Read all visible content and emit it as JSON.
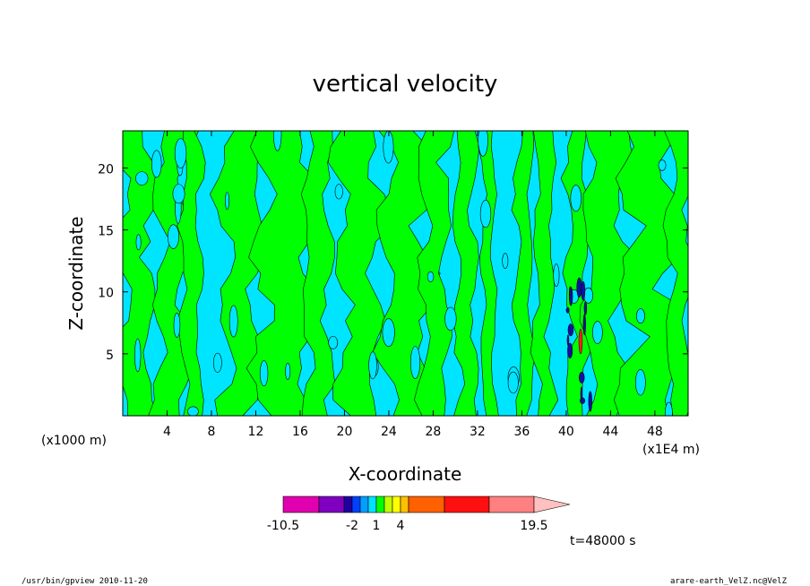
{
  "chart_data": {
    "type": "heatmap",
    "title": "vertical velocity",
    "xlabel": "X-coordinate",
    "ylabel": "Z-coordinate",
    "x_unit_left": "(x1000 m)",
    "x_unit_right": "(x1E4 m)",
    "xlim": [
      0,
      51
    ],
    "ylim": [
      0,
      23
    ],
    "xticks": [
      4,
      8,
      12,
      16,
      20,
      24,
      28,
      32,
      36,
      40,
      44,
      48
    ],
    "yticks": [
      5,
      10,
      15,
      20
    ],
    "levels": [
      -10.5,
      -8,
      -4,
      -2,
      -1,
      0,
      1,
      2,
      3,
      4,
      8,
      12,
      16,
      19.5
    ],
    "colorbar_labels": [
      "-10.5",
      "-2",
      "1",
      "4",
      "19.5"
    ],
    "colorbar_label_values": [
      -10.5,
      -2,
      1,
      4,
      19.5
    ],
    "colorbar_colors": [
      "#e000b0",
      "#8000c0",
      "#2000a0",
      "#0040ff",
      "#00a0ff",
      "#00e0ff",
      "#00ff00",
      "#c0ff00",
      "#ffff00",
      "#ffc000",
      "#ff6000",
      "#ff1010",
      "#ff8080",
      "#ffc0c0"
    ],
    "field_colors": {
      "negative": "#00e5ff",
      "positive": "#00ff00",
      "strong": "#1010a0",
      "peak": "#ff2020"
    },
    "time_label": "t=48000 s"
  },
  "footer": {
    "left": "/usr/bin/gpview   2010-11-20",
    "right": "arare-earth_VelZ.nc@VelZ"
  }
}
